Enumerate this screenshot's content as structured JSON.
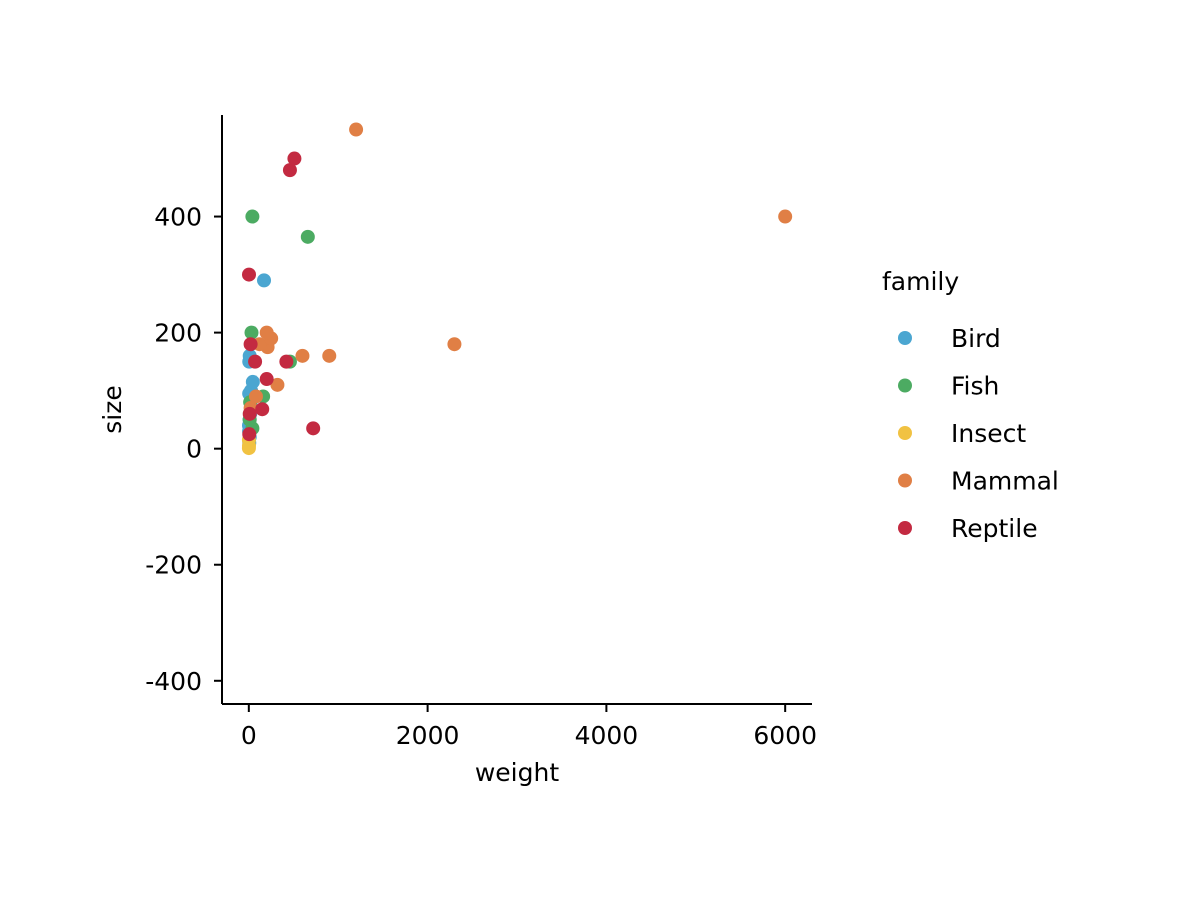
{
  "chart_data": {
    "type": "scatter",
    "title": "",
    "xlabel": "weight",
    "ylabel": "size",
    "xlim": [
      -300,
      6300
    ],
    "ylim": [
      -440,
      575
    ],
    "x_ticks": [
      0,
      2000,
      4000,
      6000
    ],
    "x_tick_labels": [
      "0",
      "2000",
      "4000",
      "6000"
    ],
    "y_ticks": [
      -400,
      -200,
      0,
      200,
      400
    ],
    "y_tick_labels": [
      "-400",
      "-200",
      "0",
      "200",
      "400"
    ],
    "grid": false,
    "legend": {
      "title": "family",
      "position": "right"
    },
    "series": [
      {
        "name": "Bird",
        "color": "#4BA6D1",
        "points": [
          [
            5,
            10
          ],
          [
            10,
            20
          ],
          [
            3,
            30
          ],
          [
            2,
            40
          ],
          [
            8,
            50
          ],
          [
            15,
            60
          ],
          [
            20,
            80
          ],
          [
            4,
            95
          ],
          [
            25,
            100
          ],
          [
            45,
            115
          ],
          [
            5,
            150
          ],
          [
            10,
            160
          ],
          [
            170,
            290
          ]
        ]
      },
      {
        "name": "Fish",
        "color": "#4CAB62",
        "points": [
          [
            40,
            35
          ],
          [
            10,
            50
          ],
          [
            15,
            80
          ],
          [
            160,
            90
          ],
          [
            460,
            150
          ],
          [
            30,
            200
          ],
          [
            40,
            400
          ],
          [
            660,
            365
          ]
        ]
      },
      {
        "name": "Insect",
        "color": "#F1C242",
        "points": [
          [
            1,
            1
          ],
          [
            2,
            5
          ],
          [
            1,
            15
          ]
        ]
      },
      {
        "name": "Mammal",
        "color": "#E07F45",
        "points": [
          [
            20,
            70
          ],
          [
            80,
            90
          ],
          [
            320,
            110
          ],
          [
            600,
            160
          ],
          [
            900,
            160
          ],
          [
            210,
            175
          ],
          [
            120,
            180
          ],
          [
            250,
            190
          ],
          [
            200,
            200
          ],
          [
            2300,
            180
          ],
          [
            1200,
            550
          ],
          [
            6000,
            400
          ]
        ]
      },
      {
        "name": "Reptile",
        "color": "#C32A41",
        "points": [
          [
            5,
            25
          ],
          [
            10,
            60
          ],
          [
            150,
            68
          ],
          [
            200,
            120
          ],
          [
            70,
            150
          ],
          [
            420,
            150
          ],
          [
            20,
            180
          ],
          [
            2,
            300
          ],
          [
            460,
            480
          ],
          [
            510,
            500
          ],
          [
            720,
            35
          ]
        ]
      }
    ]
  }
}
